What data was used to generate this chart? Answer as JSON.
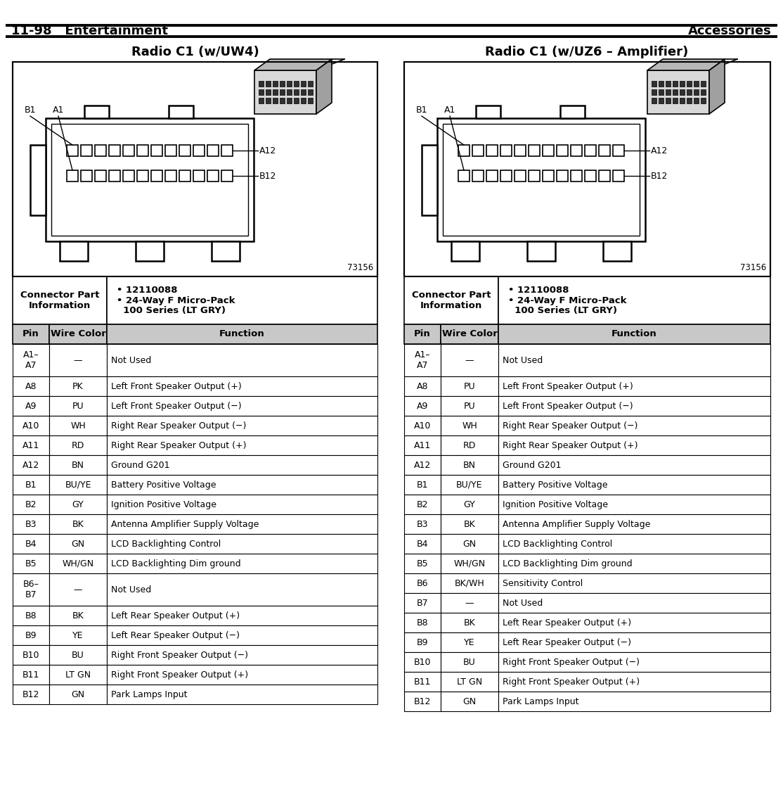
{
  "page_header_left": "11-98   Entertainment",
  "page_header_right": "Accessories",
  "left_title": "Radio C1 (w/UW4)",
  "right_title": "Radio C1 (w/UZ6 – Amplifier)",
  "connector_part_info": "Connector Part\nInformation",
  "connector_bullets": "• 12110088\n• 24-Way F Micro-Pack\n  100 Series (LT GRY)",
  "diagram_code": "73156",
  "left_table": {
    "headers": [
      "Pin",
      "Wire Color",
      "Function"
    ],
    "rows": [
      [
        "A1–\nA7",
        "—",
        "Not Used"
      ],
      [
        "A8",
        "PK",
        "Left Front Speaker Output (+)"
      ],
      [
        "A9",
        "PU",
        "Left Front Speaker Output (−)"
      ],
      [
        "A10",
        "WH",
        "Right Rear Speaker Output (−)"
      ],
      [
        "A11",
        "RD",
        "Right Rear Speaker Output (+)"
      ],
      [
        "A12",
        "BN",
        "Ground G201"
      ],
      [
        "B1",
        "BU/YE",
        "Battery Positive Voltage"
      ],
      [
        "B2",
        "GY",
        "Ignition Positive Voltage"
      ],
      [
        "B3",
        "BK",
        "Antenna Amplifier Supply Voltage"
      ],
      [
        "B4",
        "GN",
        "LCD Backlighting Control"
      ],
      [
        "B5",
        "WH/GN",
        "LCD Backlighting Dim ground"
      ],
      [
        "B6–\nB7",
        "—",
        "Not Used"
      ],
      [
        "B8",
        "BK",
        "Left Rear Speaker Output (+)"
      ],
      [
        "B9",
        "YE",
        "Left Rear Speaker Output (−)"
      ],
      [
        "B10",
        "BU",
        "Right Front Speaker Output (−)"
      ],
      [
        "B11",
        "LT GN",
        "Right Front Speaker Output (+)"
      ],
      [
        "B12",
        "GN",
        "Park Lamps Input"
      ]
    ]
  },
  "right_table": {
    "headers": [
      "Pin",
      "Wire Color",
      "Function"
    ],
    "rows": [
      [
        "A1–\nA7",
        "—",
        "Not Used"
      ],
      [
        "A8",
        "PU",
        "Left Front Speaker Output (+)"
      ],
      [
        "A9",
        "PU",
        "Left Front Speaker Output (−)"
      ],
      [
        "A10",
        "WH",
        "Right Rear Speaker Output (−)"
      ],
      [
        "A11",
        "RD",
        "Right Rear Speaker Output (+)"
      ],
      [
        "A12",
        "BN",
        "Ground G201"
      ],
      [
        "B1",
        "BU/YE",
        "Battery Positive Voltage"
      ],
      [
        "B2",
        "GY",
        "Ignition Positive Voltage"
      ],
      [
        "B3",
        "BK",
        "Antenna Amplifier Supply Voltage"
      ],
      [
        "B4",
        "GN",
        "LCD Backlighting Control"
      ],
      [
        "B5",
        "WH/GN",
        "LCD Backlighting Dim ground"
      ],
      [
        "B6",
        "BK/WH",
        "Sensitivity Control"
      ],
      [
        "B7",
        "—",
        "Not Used"
      ],
      [
        "B8",
        "BK",
        "Left Rear Speaker Output (+)"
      ],
      [
        "B9",
        "YE",
        "Left Rear Speaker Output (−)"
      ],
      [
        "B10",
        "BU",
        "Right Front Speaker Output (−)"
      ],
      [
        "B11",
        "LT GN",
        "Right Front Speaker Output (+)"
      ],
      [
        "B12",
        "GN",
        "Park Lamps Input"
      ]
    ]
  },
  "bg_color": "#ffffff",
  "header_gray": "#c8c8c8",
  "border_color": "#000000",
  "text_color": "#000000"
}
